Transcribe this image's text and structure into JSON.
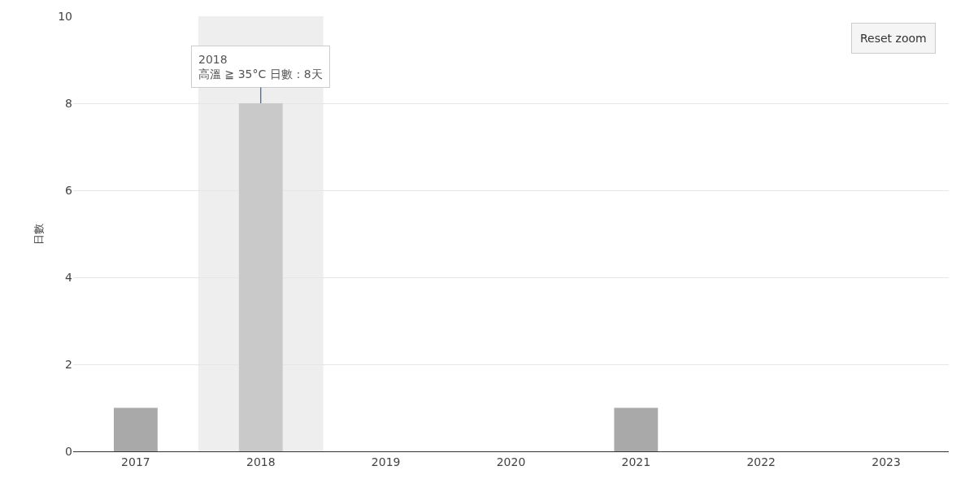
{
  "chart_data": {
    "type": "bar",
    "ylabel": "日數",
    "categories": [
      "2017",
      "2018",
      "2019",
      "2020",
      "2021",
      "2022",
      "2023"
    ],
    "values": [
      1,
      8,
      0,
      0,
      1,
      0,
      0
    ],
    "colors": [
      "#a9a9a9",
      "#c9c9c9",
      "#a9a9a9",
      "#a9a9a9",
      "#a9a9a9",
      "#a9a9a9",
      "#a9a9a9"
    ],
    "ylim": [
      0,
      10
    ],
    "yticks": [
      0,
      2,
      4,
      6,
      8,
      10
    ],
    "grid": "y",
    "bands": [
      {
        "axis": "x",
        "from": "2018",
        "to": "2018",
        "color": "#eeeeee"
      }
    ],
    "annotations": [
      {
        "text": "2018\n高溫 ≧ 35°C 日數：8天",
        "x": "2018",
        "y": 8
      },
      "Reset zoom"
    ]
  }
}
